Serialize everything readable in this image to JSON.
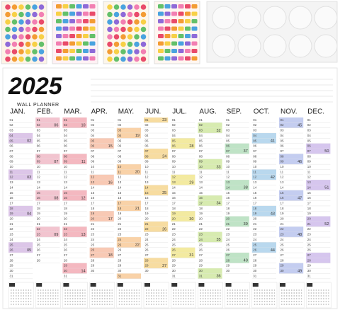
{
  "title": "2025",
  "subtitle": "WALL PLANNER",
  "day_labels": [
    "01",
    "02",
    "03",
    "04",
    "05",
    "06",
    "07",
    "08",
    "09",
    "10",
    "11",
    "12",
    "13",
    "14",
    "15",
    "16",
    "17",
    "18",
    "19",
    "20",
    "21",
    "22",
    "23",
    "24",
    "25",
    "26",
    "27",
    "28",
    "29",
    "30",
    "31"
  ],
  "months": [
    {
      "name": "JAN.",
      "days": 31,
      "color": "#dcc6e8",
      "weeks": [
        {
          "day": 5,
          "week": "02"
        },
        {
          "day": 12,
          "week": "03"
        },
        {
          "day": 19,
          "week": "04"
        },
        {
          "day": 26,
          "week": "05"
        }
      ]
    },
    {
      "name": "FEB.",
      "days": 28,
      "color": "#f2c4cf",
      "weeks": [
        {
          "day": 2,
          "week": "06"
        },
        {
          "day": 9,
          "week": "07"
        },
        {
          "day": 16,
          "week": "08"
        },
        {
          "day": 23,
          "week": "09"
        }
      ]
    },
    {
      "name": "MAR.",
      "days": 31,
      "color": "#f4b8c0",
      "weeks": [
        {
          "day": 2,
          "week": "10"
        },
        {
          "day": 9,
          "week": "11"
        },
        {
          "day": 16,
          "week": "12"
        },
        {
          "day": 23,
          "week": "13"
        },
        {
          "day": 30,
          "week": "14"
        }
      ]
    },
    {
      "name": "APR.",
      "days": 30,
      "color": "#f8c9b4",
      "weeks": [
        {
          "day": 6,
          "week": "15"
        },
        {
          "day": 13,
          "week": "16"
        },
        {
          "day": 20,
          "week": "17"
        },
        {
          "day": 27,
          "week": "18"
        }
      ]
    },
    {
      "name": "MAY.",
      "days": 31,
      "color": "#f9d2a8",
      "weeks": [
        {
          "day": 4,
          "week": "19"
        },
        {
          "day": 11,
          "week": "20"
        },
        {
          "day": 18,
          "week": "21"
        },
        {
          "day": 25,
          "week": "22"
        }
      ]
    },
    {
      "name": "JUN.",
      "days": 30,
      "color": "#f7dca0",
      "weeks": [
        {
          "day": 1,
          "week": "23"
        },
        {
          "day": 8,
          "week": "24"
        },
        {
          "day": 15,
          "week": "25"
        },
        {
          "day": 22,
          "week": "26"
        },
        {
          "day": 29,
          "week": "27"
        }
      ]
    },
    {
      "name": "JUL.",
      "days": 31,
      "color": "#f3eaa0",
      "weeks": [
        {
          "day": 6,
          "week": "28"
        },
        {
          "day": 13,
          "week": "29"
        },
        {
          "day": 20,
          "week": "30"
        },
        {
          "day": 27,
          "week": "31"
        }
      ]
    },
    {
      "name": "AUG.",
      "days": 31,
      "color": "#d7ebb0",
      "weeks": [
        {
          "day": 3,
          "week": "32"
        },
        {
          "day": 10,
          "week": "33"
        },
        {
          "day": 17,
          "week": "34"
        },
        {
          "day": 24,
          "week": "35"
        },
        {
          "day": 31,
          "week": "36"
        }
      ]
    },
    {
      "name": "SEP.",
      "days": 30,
      "color": "#bfe3c6",
      "weeks": [
        {
          "day": 7,
          "week": "37"
        },
        {
          "day": 14,
          "week": "38"
        },
        {
          "day": 21,
          "week": "39"
        },
        {
          "day": 28,
          "week": "40"
        }
      ]
    },
    {
      "name": "OCT.",
      "days": 31,
      "color": "#b9d8ee",
      "weeks": [
        {
          "day": 5,
          "week": "41"
        },
        {
          "day": 12,
          "week": "42"
        },
        {
          "day": 19,
          "week": "43"
        },
        {
          "day": 26,
          "week": "44"
        }
      ]
    },
    {
      "name": "NOV.",
      "days": 30,
      "color": "#c4cdf0",
      "weeks": [
        {
          "day": 2,
          "week": "45"
        },
        {
          "day": 9,
          "week": "46"
        },
        {
          "day": 16,
          "week": "47"
        },
        {
          "day": 23,
          "week": "48"
        },
        {
          "day": 30,
          "week": "49"
        }
      ]
    },
    {
      "name": "DEC.",
      "days": 31,
      "color": "#d6c6ee",
      "weeks": [
        {
          "day": 7,
          "week": "50"
        },
        {
          "day": 14,
          "week": "51"
        },
        {
          "day": 21,
          "week": "52"
        }
      ]
    }
  ]
}
